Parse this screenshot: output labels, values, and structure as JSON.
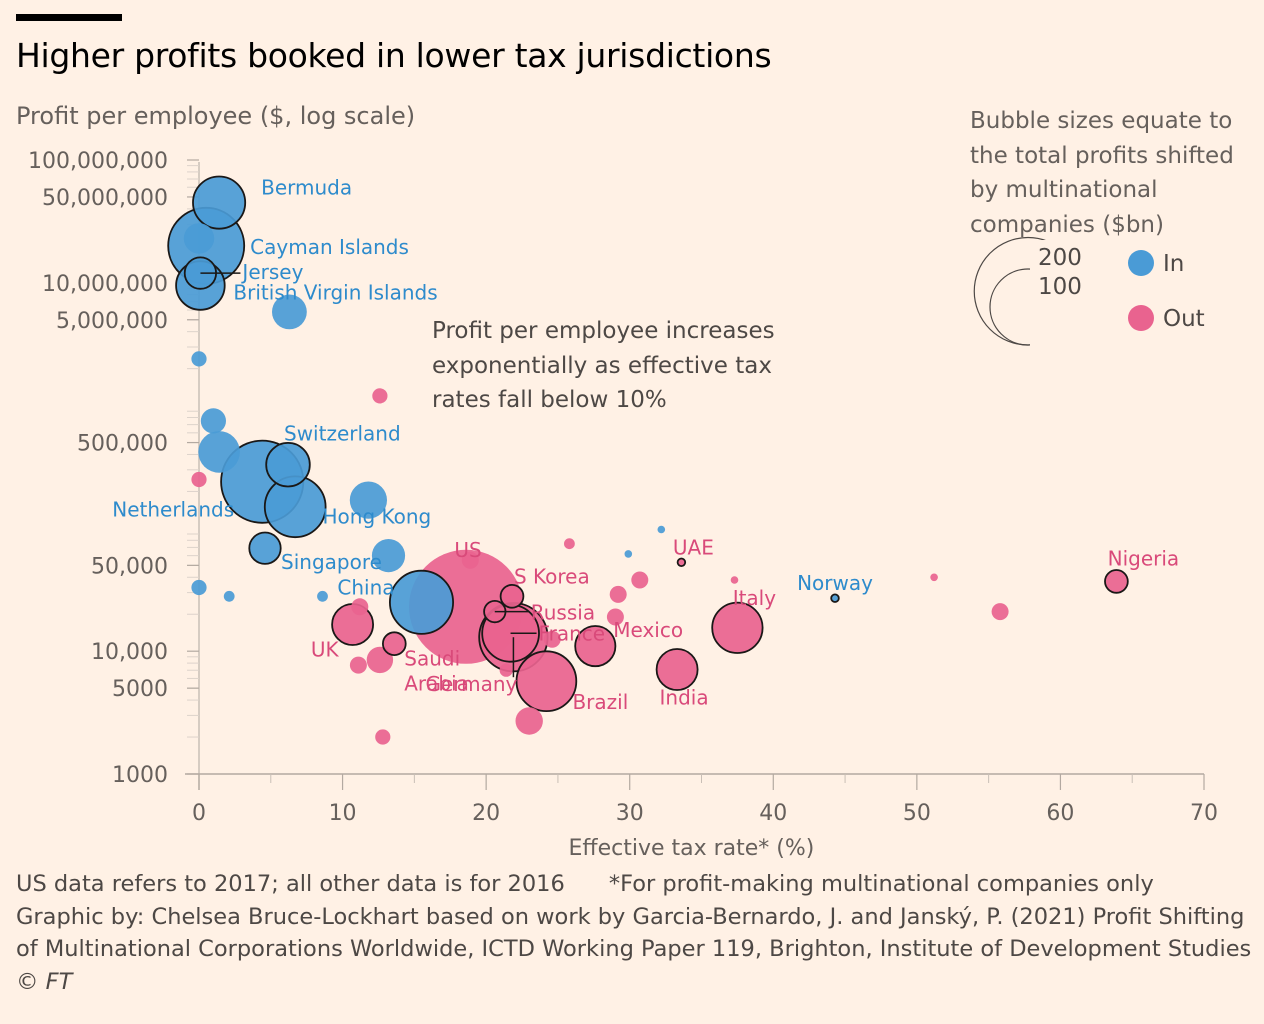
{
  "title": "Higher profits booked in lower tax jurisdictions",
  "y_axis_label": "Profit per employee ($, log scale)",
  "x_axis_label": "Effective tax rate* (%)",
  "annotation": "Profit per employee increases exponentially as effective tax rates fall below 10%",
  "legend": {
    "description": "Bubble sizes equate to the total profits shifted by multinational companies ($bn)",
    "size_labels": [
      "200",
      "100"
    ],
    "in_label": "In",
    "out_label": "Out"
  },
  "footer": {
    "note_left": "US data refers to 2017; all other data is for 2016",
    "note_right": "*For profit-making multinational companies only",
    "source_1": "Graphic by: Chelsea Bruce-Lockhart based on work by Garcia-Bernardo, J. and Janský, P. (2021) Profit Shifting",
    "source_2": "of Multinational Corporations Worldwide, ICTD Working Paper 119, Brighton, Institute of Development Studies",
    "copyright": "© FT"
  },
  "colors": {
    "in": "#4A9BD6",
    "out": "#E9638F",
    "in_text": "#2E8BCC",
    "out_text": "#D94A7A",
    "background": "#FFF1E5"
  },
  "chart_data": {
    "type": "scatter",
    "x_label": "Effective tax rate* (%)",
    "y_label": "Profit per employee ($, log scale)",
    "y_scale": "log",
    "xlim": [
      0,
      70
    ],
    "ylim": [
      1000,
      100000000
    ],
    "x_ticks": [
      0,
      10,
      20,
      30,
      40,
      50,
      60,
      70
    ],
    "y_ticks": [
      {
        "value": 100000000,
        "label": "100,000,000"
      },
      {
        "value": 50000000,
        "label": "50,000,000"
      },
      {
        "value": 10000000,
        "label": "10,000,000"
      },
      {
        "value": 5000000,
        "label": "5,000,000"
      },
      {
        "value": 500000,
        "label": "500,000"
      },
      {
        "value": 50000,
        "label": "50,000"
      },
      {
        "value": 10000,
        "label": "10,000"
      },
      {
        "value": 5000,
        "label": "5000"
      },
      {
        "value": 1000,
        "label": "1000"
      }
    ],
    "size_variable": "Total profits shifted ($bn)",
    "series": [
      {
        "name": "In",
        "points": [
          {
            "x": 1.4,
            "y": 45000000,
            "size": 47,
            "label": "Bermuda",
            "outline": true
          },
          {
            "x": 0.5,
            "y": 20000000,
            "size": 100,
            "label": "Cayman Islands",
            "outline": true
          },
          {
            "x": 0.1,
            "y": 12000000,
            "size": 17,
            "label": "Jersey",
            "outline": true
          },
          {
            "x": 0.1,
            "y": 9500000,
            "size": 41,
            "label": "British Virgin Islands",
            "outline": true
          },
          {
            "x": 0.0,
            "y": 23000000,
            "size": 16
          },
          {
            "x": 6.3,
            "y": 5800000,
            "size": 21
          },
          {
            "x": 0.0,
            "y": 2400000,
            "size": 4
          },
          {
            "x": 1.0,
            "y": 750000,
            "size": 11
          },
          {
            "x": 1.4,
            "y": 420000,
            "size": 30
          },
          {
            "x": 6.2,
            "y": 330000,
            "size": 33,
            "label": "Switzerland",
            "outline": true
          },
          {
            "x": 4.4,
            "y": 240000,
            "size": 117,
            "label": "Netherlands",
            "outline": true
          },
          {
            "x": 6.7,
            "y": 150000,
            "size": 64,
            "outline": true
          },
          {
            "x": 11.8,
            "y": 170000,
            "size": 24
          },
          {
            "x": 4.6,
            "y": 69000,
            "size": 17,
            "label": "Singapore",
            "outline": true
          },
          {
            "x": 13.2,
            "y": 60000,
            "size": 19,
            "label": "Hong Kong"
          },
          {
            "x": 15.5,
            "y": 25000,
            "size": 69,
            "label": "China",
            "outline": true
          },
          {
            "x": 0.0,
            "y": 33000,
            "size": 4
          },
          {
            "x": 2.1,
            "y": 28000,
            "size": 2
          },
          {
            "x": 8.6,
            "y": 28000,
            "size": 2
          },
          {
            "x": 44.3,
            "y": 27000,
            "size": 1,
            "label": "Norway",
            "outline": true
          },
          {
            "x": 32.2,
            "y": 98000,
            "size": 1
          },
          {
            "x": 29.9,
            "y": 62000,
            "size": 1
          }
        ]
      },
      {
        "name": "Out",
        "points": [
          {
            "x": 18.6,
            "y": 23000,
            "size": 225,
            "label": "US"
          },
          {
            "x": 21.9,
            "y": 13000,
            "size": 81,
            "label": "Germany",
            "outline": true
          },
          {
            "x": 21.7,
            "y": 14000,
            "size": 56,
            "label": "France",
            "outline": true
          },
          {
            "x": 20.6,
            "y": 21000,
            "size": 8,
            "label": "Russia",
            "outline": true
          },
          {
            "x": 21.8,
            "y": 28000,
            "size": 9,
            "label": "S Korea",
            "outline": true
          },
          {
            "x": 24.2,
            "y": 5700,
            "size": 62,
            "label": "Brazil",
            "outline": true
          },
          {
            "x": 27.6,
            "y": 11000,
            "size": 28,
            "label": "Mexico",
            "outline": true
          },
          {
            "x": 33.3,
            "y": 7100,
            "size": 29,
            "label": "India",
            "outline": true
          },
          {
            "x": 37.5,
            "y": 15500,
            "size": 44,
            "label": "Italy",
            "outline": true
          },
          {
            "x": 33.6,
            "y": 53000,
            "size": 1,
            "label": "UAE",
            "outline": true
          },
          {
            "x": 63.9,
            "y": 37000,
            "size": 9,
            "label": "Nigeria",
            "outline": true
          },
          {
            "x": 10.7,
            "y": 16500,
            "size": 29,
            "label": "UK",
            "outline": true
          },
          {
            "x": 13.6,
            "y": 11500,
            "size": 9,
            "label": "Saudi Arabia",
            "outline": true
          },
          {
            "x": 12.6,
            "y": 1200000,
            "size": 4
          },
          {
            "x": 0.0,
            "y": 250000,
            "size": 4
          },
          {
            "x": 11.2,
            "y": 23000,
            "size": 5
          },
          {
            "x": 12.6,
            "y": 8500,
            "size": 12
          },
          {
            "x": 11.1,
            "y": 7700,
            "size": 5
          },
          {
            "x": 12.8,
            "y": 2000,
            "size": 4
          },
          {
            "x": 23.0,
            "y": 2700,
            "size": 13
          },
          {
            "x": 21.4,
            "y": 7000,
            "size": 3
          },
          {
            "x": 25.8,
            "y": 75000,
            "size": 2
          },
          {
            "x": 29.2,
            "y": 29000,
            "size": 5
          },
          {
            "x": 30.7,
            "y": 38000,
            "size": 5
          },
          {
            "x": 29.0,
            "y": 19000,
            "size": 5
          },
          {
            "x": 24.6,
            "y": 12500,
            "size": 5
          },
          {
            "x": 55.8,
            "y": 21000,
            "size": 5
          },
          {
            "x": 51.2,
            "y": 40000,
            "size": 1
          },
          {
            "x": 18.9,
            "y": 55000,
            "size": 5
          },
          {
            "x": 37.3,
            "y": 38000,
            "size": 1
          }
        ]
      }
    ]
  }
}
